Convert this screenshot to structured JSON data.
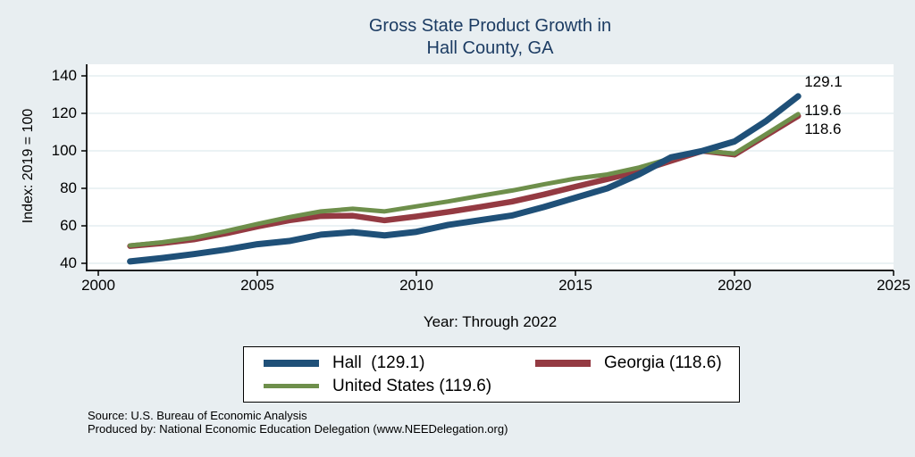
{
  "title": {
    "line1": "Gross State Product Growth in",
    "line2": "Hall County, GA"
  },
  "axes": {
    "y_label": "Index: 2019 = 100",
    "x_label": "Year: Through 2022",
    "x_ticks": [
      "2000",
      "2005",
      "2010",
      "2015",
      "2020",
      "2025"
    ],
    "y_ticks": [
      "40",
      "60",
      "80",
      "100",
      "120",
      "140"
    ]
  },
  "chart_data": {
    "type": "line",
    "title": "Gross State Product Growth in Hall County, GA",
    "xlabel": "Year: Through 2022",
    "ylabel": "Index: 2019 = 100",
    "xlim": [
      2000,
      2025
    ],
    "ylim": [
      40,
      140
    ],
    "grid": "horizontal-light",
    "legend_position": "bottom",
    "x": [
      2001,
      2002,
      2003,
      2004,
      2005,
      2006,
      2007,
      2008,
      2009,
      2010,
      2011,
      2012,
      2013,
      2014,
      2015,
      2016,
      2017,
      2018,
      2019,
      2020,
      2021,
      2022
    ],
    "series": [
      {
        "name": "Hall",
        "color": "#1f5078",
        "line_width": 7,
        "end_label": "129.1",
        "values": [
          41.0,
          42.8,
          44.9,
          47.3,
          50.2,
          51.9,
          55.3,
          56.6,
          54.9,
          56.8,
          60.5,
          63.0,
          65.5,
          70.0,
          75.0,
          80.0,
          87.5,
          96.5,
          100.0,
          105.0,
          116.0,
          129.1
        ]
      },
      {
        "name": "Georgia",
        "color": "#943a42",
        "line_width": 6.5,
        "end_label": "118.6",
        "values": [
          49.2,
          50.7,
          52.7,
          55.9,
          59.6,
          62.9,
          65.2,
          65.4,
          62.9,
          65.0,
          67.4,
          70.1,
          72.9,
          76.7,
          80.9,
          84.9,
          89.2,
          94.6,
          100.0,
          98.0,
          108.3,
          118.6
        ]
      },
      {
        "name": "United States",
        "color": "#6e8f4b",
        "line_width": 5,
        "end_label": "119.6",
        "values": [
          49.5,
          51.2,
          53.6,
          57.1,
          61.0,
          64.6,
          67.7,
          69.1,
          67.7,
          70.4,
          73.0,
          76.0,
          78.8,
          82.1,
          85.2,
          87.4,
          91.1,
          96.0,
          100.0,
          98.5,
          109.0,
          119.6
        ]
      }
    ]
  },
  "legend": {
    "entries": [
      {
        "label": "Hall  (129.1)",
        "series": "Hall"
      },
      {
        "label": "Georgia (118.6)",
        "series": "Georgia"
      },
      {
        "label": "United States (119.6)",
        "series": "United States"
      }
    ]
  },
  "footer": {
    "source": "Source: U.S. Bureau of Economic Analysis",
    "produced_by": "Produced by: National Economic Education Delegation (www.NEEDelegation.org)"
  },
  "colors": {
    "background": "#e8eef1",
    "plot_background": "#ffffff",
    "gridline": "#dfeaee",
    "axis": "#000000",
    "title_text": "#1c3c63",
    "hall": "#1f5078",
    "georgia": "#943a42",
    "united_states": "#6e8f4b"
  }
}
